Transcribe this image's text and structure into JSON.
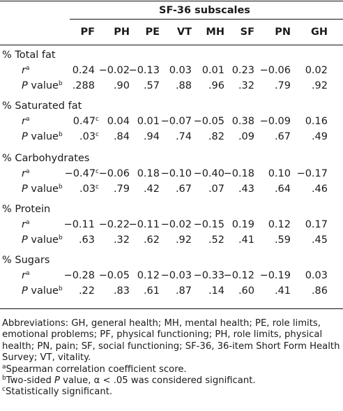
{
  "header": {
    "group_title": "SF-36 subscales",
    "columns": [
      "PF",
      "PH",
      "PE",
      "VT",
      "MH",
      "SF",
      "PN",
      "GH"
    ]
  },
  "stat_labels": {
    "r": "r",
    "r_sup": "a",
    "p_italic": "P",
    "p_rest": " value",
    "p_sup": "b"
  },
  "sections": [
    {
      "label": "% Total fat",
      "r": [
        {
          "v": "0.24"
        },
        {
          "v": "−0.02"
        },
        {
          "v": "−0.13"
        },
        {
          "v": "0.03"
        },
        {
          "v": "0.01"
        },
        {
          "v": "0.23"
        },
        {
          "v": "−0.06"
        },
        {
          "v": "0.02"
        }
      ],
      "p": [
        {
          "v": ".288"
        },
        {
          "v": ".90"
        },
        {
          "v": ".57"
        },
        {
          "v": ".88"
        },
        {
          "v": ".96"
        },
        {
          "v": ".32"
        },
        {
          "v": ".79"
        },
        {
          "v": ".92"
        }
      ]
    },
    {
      "label": "% Saturated fat",
      "r": [
        {
          "v": "0.47",
          "sup": "c"
        },
        {
          "v": "0.04"
        },
        {
          "v": "0.01"
        },
        {
          "v": "−0.07"
        },
        {
          "v": "−0.05"
        },
        {
          "v": "0.38"
        },
        {
          "v": "−0.09"
        },
        {
          "v": "0.16"
        }
      ],
      "p": [
        {
          "v": ".03",
          "sup": "c"
        },
        {
          "v": ".84"
        },
        {
          "v": ".94"
        },
        {
          "v": ".74"
        },
        {
          "v": ".82"
        },
        {
          "v": ".09"
        },
        {
          "v": ".67"
        },
        {
          "v": ".49"
        }
      ]
    },
    {
      "label": "% Carbohydrates",
      "r": [
        {
          "v": "−0.47",
          "sup": "c"
        },
        {
          "v": "−0.06"
        },
        {
          "v": "0.18"
        },
        {
          "v": "−0.10"
        },
        {
          "v": "−0.40"
        },
        {
          "v": "−0.18"
        },
        {
          "v": "0.10"
        },
        {
          "v": "−0.17"
        }
      ],
      "p": [
        {
          "v": ".03",
          "sup": "c"
        },
        {
          "v": ".79"
        },
        {
          "v": ".42"
        },
        {
          "v": ".67"
        },
        {
          "v": ".07"
        },
        {
          "v": ".43"
        },
        {
          "v": ".64"
        },
        {
          "v": ".46"
        }
      ]
    },
    {
      "label": "% Protein",
      "r": [
        {
          "v": "−0.11"
        },
        {
          "v": "−0.22"
        },
        {
          "v": "−0.11"
        },
        {
          "v": "−0.02"
        },
        {
          "v": "−0.15"
        },
        {
          "v": "0.19"
        },
        {
          "v": "0.12"
        },
        {
          "v": "0.17"
        }
      ],
      "p": [
        {
          "v": ".63"
        },
        {
          "v": ".32"
        },
        {
          "v": ".62"
        },
        {
          "v": ".92"
        },
        {
          "v": ".52"
        },
        {
          "v": ".41"
        },
        {
          "v": ".59"
        },
        {
          "v": ".45"
        }
      ]
    },
    {
      "label": "% Sugars",
      "r": [
        {
          "v": "−0.28"
        },
        {
          "v": "−0.05"
        },
        {
          "v": "0.12"
        },
        {
          "v": "−0.03"
        },
        {
          "v": "−0.33"
        },
        {
          "v": "−0.12"
        },
        {
          "v": "−0.19"
        },
        {
          "v": "0.03"
        }
      ],
      "p": [
        {
          "v": ".22"
        },
        {
          "v": ".83"
        },
        {
          "v": ".61"
        },
        {
          "v": ".87"
        },
        {
          "v": ".14"
        },
        {
          "v": ".60"
        },
        {
          "v": ".41"
        },
        {
          "v": ".86"
        }
      ]
    }
  ],
  "notes": {
    "abbreviations": "Abbreviations: GH, general health; MH, mental health; PE, role limits, emotional problems; PF, physical functioning; PH, role limits, physical health; PN, pain; SF, social functioning; SF-36, 36-item Short Form Health Survey; VT, vitality.",
    "a_mark": "a",
    "a_text": "Spearman correlation coefficient score.",
    "b_mark": "b",
    "b_text_1": "Two-sided ",
    "b_text_italic": "P",
    "b_text_2": " value, α < .05 was considered significant.",
    "c_mark": "c",
    "c_text": "Statistically significant."
  }
}
